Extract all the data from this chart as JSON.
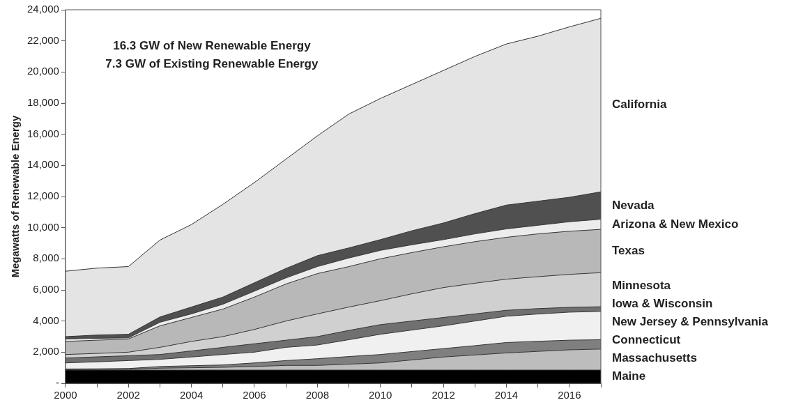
{
  "chart_data": {
    "type": "area",
    "stacked": true,
    "ylabel": "Megawatts of Renewable Energy",
    "annotations": [
      "16.3 GW of New Renewable Energy",
      "7.3 GW of Existing Renewable Energy"
    ],
    "x": [
      2000,
      2001,
      2002,
      2003,
      2004,
      2005,
      2006,
      2007,
      2008,
      2009,
      2010,
      2011,
      2012,
      2013,
      2014,
      2015,
      2016,
      2017
    ],
    "xlim": [
      2000,
      2017
    ],
    "xticks": [
      2000,
      {
        "value": 2001,
        "label": null
      },
      2002,
      {
        "value": 2003,
        "label": null
      },
      2004,
      {
        "value": 2005,
        "label": null
      },
      2006,
      {
        "value": 2007,
        "label": null
      },
      2008,
      {
        "value": 2009,
        "label": null
      },
      2010,
      {
        "value": 2011,
        "label": null
      },
      2012,
      {
        "value": 2013,
        "label": null
      },
      2014,
      {
        "value": 2015,
        "label": null
      },
      2016,
      {
        "value": 2017,
        "label": null
      }
    ],
    "ylim": [
      0,
      24000
    ],
    "yticks": [
      {
        "value": 0,
        "label": "-"
      },
      {
        "value": 2000,
        "label": "2,000"
      },
      {
        "value": 4000,
        "label": "4,000"
      },
      {
        "value": 6000,
        "label": "6,000"
      },
      {
        "value": 8000,
        "label": "8,000"
      },
      {
        "value": 10000,
        "label": "10,000"
      },
      {
        "value": 12000,
        "label": "12,000"
      },
      {
        "value": 14000,
        "label": "14,000"
      },
      {
        "value": 16000,
        "label": "16,000"
      },
      {
        "value": 18000,
        "label": "18,000"
      },
      {
        "value": 20000,
        "label": "20,000"
      },
      {
        "value": 22000,
        "label": "22,000"
      },
      {
        "value": 24000,
        "label": "24,000"
      }
    ],
    "grid": false,
    "legend": false,
    "series": [
      {
        "name": "Maine",
        "color": "#000000",
        "values": [
          850,
          850,
          850,
          850,
          850,
          850,
          850,
          850,
          850,
          850,
          850,
          850,
          850,
          850,
          850,
          850,
          850,
          850
        ]
      },
      {
        "name": "Massachusetts",
        "color": "#bdbdbd",
        "values": [
          30,
          40,
          50,
          120,
          150,
          180,
          230,
          300,
          300,
          380,
          460,
          650,
          840,
          970,
          1100,
          1200,
          1300,
          1350
        ]
      },
      {
        "name": "Connecticut",
        "color": "#7f7f7f",
        "values": [
          40,
          40,
          50,
          110,
          130,
          150,
          230,
          310,
          430,
          490,
          540,
          540,
          540,
          600,
          670,
          650,
          620,
          600
        ]
      },
      {
        "name": "New Jersey & Pennsylvania",
        "color": "#f0f0f0",
        "values": [
          390,
          450,
          510,
          460,
          560,
          670,
          690,
          850,
          880,
          1080,
          1300,
          1380,
          1460,
          1580,
          1690,
          1750,
          1800,
          1820
        ]
      },
      {
        "name": "Iowa & Wisconsin",
        "color": "#707070",
        "values": [
          310,
          320,
          310,
          310,
          390,
          460,
          540,
          460,
          540,
          600,
          620,
          580,
          540,
          460,
          380,
          350,
          310,
          300
        ]
      },
      {
        "name": "Minnesota",
        "color": "#d0d0d0",
        "values": [
          230,
          220,
          230,
          460,
          610,
          690,
          920,
          1230,
          1460,
          1500,
          1540,
          1750,
          1920,
          1970,
          2000,
          2050,
          2120,
          2190
        ]
      },
      {
        "name": "Texas",
        "color": "#b8b8b8",
        "values": [
          840,
          850,
          850,
          1380,
          1540,
          1770,
          2080,
          2380,
          2590,
          2600,
          2690,
          2650,
          2620,
          2670,
          2690,
          2750,
          2770,
          2780
        ]
      },
      {
        "name": "Arizona & New Mexico",
        "color": "#ececec",
        "values": [
          160,
          120,
          70,
          230,
          230,
          310,
          380,
          390,
          450,
          550,
          540,
          500,
          460,
          500,
          540,
          550,
          610,
          650
        ]
      },
      {
        "name": "Nevada",
        "color": "#505050",
        "values": [
          150,
          210,
          230,
          340,
          440,
          460,
          540,
          610,
          700,
          650,
          690,
          900,
          1070,
          1300,
          1530,
          1550,
          1570,
          1760
        ]
      },
      {
        "name": "California",
        "color": "#e4e4e4",
        "values": [
          4200,
          4300,
          4350,
          4940,
          5300,
          5960,
          6440,
          7020,
          7700,
          8600,
          9070,
          9400,
          9800,
          10100,
          10350,
          10600,
          10950,
          11150
        ]
      }
    ]
  }
}
